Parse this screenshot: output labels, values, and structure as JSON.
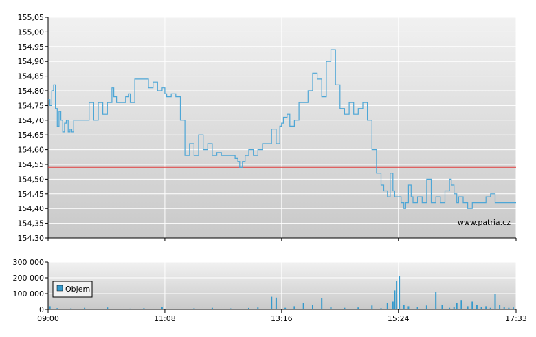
{
  "watermark": "www.patria.cz",
  "colors": {
    "price_line": "#4da6d6",
    "reference_line": "#e03c3c",
    "volume_bar": "#3399cc",
    "grid": "#ffffff",
    "plot_top": "#f1f1f1",
    "plot_bottom": "#c9c9c9"
  },
  "chart_data": [
    {
      "type": "line",
      "name": "price",
      "ylim": [
        154.3,
        155.05
      ],
      "yticks": [
        "155,05",
        "155,00",
        "154,95",
        "154,90",
        "154,85",
        "154,80",
        "154,75",
        "154,70",
        "154,65",
        "154,60",
        "154,55",
        "154,50",
        "154,45",
        "154,40",
        "154,35",
        "154,30"
      ],
      "ytick_values": [
        155.05,
        155.0,
        154.95,
        154.9,
        154.85,
        154.8,
        154.75,
        154.7,
        154.65,
        154.6,
        154.55,
        154.5,
        154.45,
        154.4,
        154.35,
        154.3
      ],
      "xlim": [
        "09:00",
        "17:33"
      ],
      "reference_value": 154.54,
      "series": [
        {
          "x": [
            "09:00",
            "09:02",
            "09:04",
            "09:06",
            "09:08",
            "09:10",
            "09:12",
            "09:14",
            "09:16",
            "09:18",
            "09:20",
            "09:22",
            "09:24",
            "09:26",
            "09:28",
            "09:30",
            "09:35",
            "09:40",
            "09:45",
            "09:50",
            "09:55",
            "10:00",
            "10:05",
            "10:10",
            "10:12",
            "10:15",
            "10:18",
            "10:20",
            "10:25",
            "10:28",
            "10:30",
            "10:35",
            "10:38",
            "10:40",
            "10:45",
            "10:50",
            "10:55",
            "11:00",
            "11:05",
            "11:08",
            "11:10",
            "11:15",
            "11:20",
            "11:25",
            "11:30",
            "11:35",
            "11:40",
            "11:45",
            "11:50",
            "11:55",
            "12:00",
            "12:05",
            "12:10",
            "12:15",
            "12:20",
            "12:25",
            "12:28",
            "12:30",
            "12:33",
            "12:36",
            "12:40",
            "12:45",
            "12:50",
            "12:55",
            "13:00",
            "13:05",
            "13:10",
            "13:14",
            "13:16",
            "13:18",
            "13:22",
            "13:25",
            "13:30",
            "13:35",
            "13:40",
            "13:45",
            "13:50",
            "13:55",
            "14:00",
            "14:05",
            "14:10",
            "14:15",
            "14:20",
            "14:25",
            "14:30",
            "14:35",
            "14:40",
            "14:45",
            "14:50",
            "14:55",
            "15:00",
            "15:05",
            "15:08",
            "15:12",
            "15:15",
            "15:18",
            "15:20",
            "15:24",
            "15:27",
            "15:30",
            "15:32",
            "15:35",
            "15:38",
            "15:40",
            "15:45",
            "15:50",
            "15:55",
            "16:00",
            "16:05",
            "16:10",
            "16:15",
            "16:20",
            "16:22",
            "16:25",
            "16:28",
            "16:30",
            "16:35",
            "16:40",
            "16:45",
            "16:50",
            "16:55",
            "17:00",
            "17:05",
            "17:10",
            "17:15",
            "17:20",
            "17:25",
            "17:28",
            "17:33"
          ],
          "y": [
            154.77,
            154.75,
            154.8,
            154.82,
            154.74,
            154.68,
            154.73,
            154.7,
            154.66,
            154.69,
            154.7,
            154.66,
            154.67,
            154.66,
            154.7,
            154.7,
            154.7,
            154.7,
            154.76,
            154.7,
            154.76,
            154.72,
            154.76,
            154.81,
            154.78,
            154.76,
            154.76,
            154.76,
            154.78,
            154.79,
            154.76,
            154.84,
            154.84,
            154.84,
            154.84,
            154.81,
            154.83,
            154.8,
            154.81,
            154.79,
            154.78,
            154.79,
            154.78,
            154.7,
            154.58,
            154.62,
            154.58,
            154.65,
            154.6,
            154.62,
            154.58,
            154.59,
            154.58,
            154.58,
            154.58,
            154.57,
            154.56,
            154.54,
            154.56,
            154.58,
            154.6,
            154.58,
            154.6,
            154.62,
            154.62,
            154.67,
            154.62,
            154.68,
            154.69,
            154.71,
            154.72,
            154.68,
            154.7,
            154.76,
            154.76,
            154.8,
            154.86,
            154.84,
            154.78,
            154.9,
            154.94,
            154.82,
            154.74,
            154.72,
            154.76,
            154.72,
            154.74,
            154.76,
            154.7,
            154.6,
            154.52,
            154.48,
            154.46,
            154.44,
            154.52,
            154.46,
            154.44,
            154.44,
            154.42,
            154.4,
            154.42,
            154.48,
            154.44,
            154.42,
            154.44,
            154.42,
            154.5,
            154.42,
            154.44,
            154.42,
            154.46,
            154.5,
            154.48,
            154.45,
            154.42,
            154.44,
            154.42,
            154.4,
            154.42,
            154.42,
            154.42,
            154.44,
            154.45,
            154.42,
            154.42,
            154.42,
            154.42,
            154.42,
            154.42
          ]
        }
      ]
    },
    {
      "type": "bar",
      "name": "volume",
      "ylim": [
        0,
        300000
      ],
      "yticks": [
        "300 000",
        "200 000",
        "100 000",
        "0"
      ],
      "ytick_values": [
        300000,
        200000,
        100000,
        0
      ],
      "xticks": [
        "09:00",
        "11:08",
        "13:16",
        "15:24",
        "17:33"
      ],
      "xlim": [
        "09:00",
        "17:33"
      ],
      "series": [
        {
          "name": "Objem",
          "x": [
            "09:02",
            "09:10",
            "09:25",
            "09:40",
            "10:05",
            "10:30",
            "10:45",
            "11:05",
            "11:20",
            "11:40",
            "12:00",
            "12:20",
            "12:40",
            "12:50",
            "13:05",
            "13:10",
            "13:20",
            "13:30",
            "13:40",
            "13:50",
            "14:00",
            "14:10",
            "14:25",
            "14:40",
            "14:55",
            "15:05",
            "15:12",
            "15:18",
            "15:20",
            "15:22",
            "15:25",
            "15:30",
            "15:35",
            "15:45",
            "15:55",
            "16:05",
            "16:12",
            "16:20",
            "16:25",
            "16:28",
            "16:33",
            "16:40",
            "16:45",
            "16:50",
            "16:55",
            "17:00",
            "17:05",
            "17:10",
            "17:15",
            "17:20",
            "17:25",
            "17:30"
          ],
          "values": [
            20000,
            8000,
            6000,
            10000,
            12000,
            5000,
            8000,
            15000,
            4000,
            7000,
            10000,
            6000,
            9000,
            12000,
            80000,
            75000,
            10000,
            20000,
            40000,
            30000,
            70000,
            15000,
            10000,
            12000,
            25000,
            8000,
            40000,
            50000,
            120000,
            180000,
            210000,
            30000,
            20000,
            15000,
            25000,
            110000,
            30000,
            10000,
            15000,
            40000,
            60000,
            20000,
            50000,
            30000,
            15000,
            20000,
            10000,
            100000,
            30000,
            15000,
            10000,
            12000
          ]
        }
      ],
      "legend": {
        "label": "Objem",
        "placement": "left"
      }
    }
  ]
}
